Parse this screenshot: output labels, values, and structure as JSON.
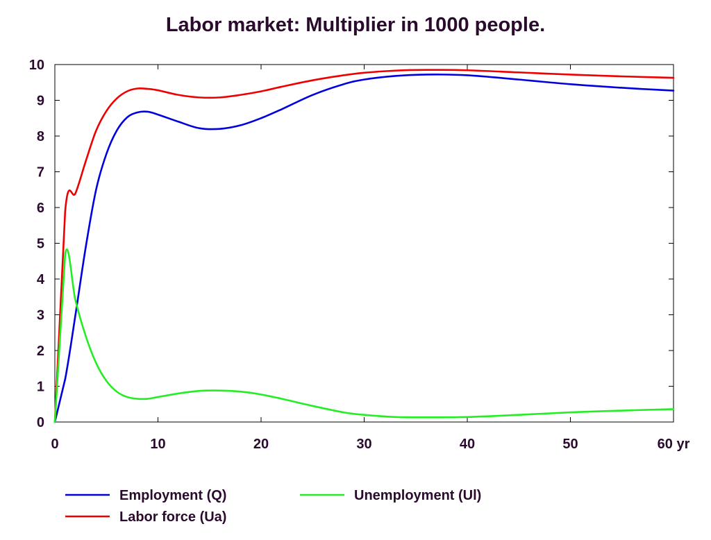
{
  "chart_data": {
    "type": "line",
    "title": "Labor market: Multiplier in 1000 people.",
    "xlabel": "",
    "ylabel": "",
    "x_unit_suffix": "yr",
    "xlim": [
      0,
      60
    ],
    "ylim": [
      0,
      10
    ],
    "x_ticks": [
      0,
      10,
      20,
      30,
      40,
      50,
      60
    ],
    "y_ticks": [
      0,
      1,
      2,
      3,
      4,
      5,
      6,
      7,
      8,
      9,
      10
    ],
    "grid": false,
    "legend_position": "bottom",
    "series": [
      {
        "name": "Employment (Q)",
        "color": "#0000dd",
        "x": [
          0,
          1,
          2,
          3,
          4,
          5,
          6,
          7,
          8,
          9,
          10,
          12,
          14,
          16,
          18,
          20,
          22,
          25,
          28,
          30,
          33,
          36,
          40,
          45,
          50,
          55,
          60
        ],
        "values": [
          0,
          1.2,
          3.0,
          4.9,
          6.5,
          7.5,
          8.15,
          8.52,
          8.66,
          8.68,
          8.6,
          8.4,
          8.22,
          8.2,
          8.3,
          8.5,
          8.75,
          9.15,
          9.45,
          9.58,
          9.68,
          9.72,
          9.7,
          9.58,
          9.45,
          9.35,
          9.27
        ]
      },
      {
        "name": "Labor force (Ua)",
        "color": "#ee0000",
        "x": [
          0,
          1,
          2,
          3,
          4,
          5,
          6,
          7,
          8,
          9,
          10,
          12,
          14,
          16,
          18,
          20,
          22,
          25,
          28,
          30,
          33,
          36,
          40,
          45,
          50,
          55,
          60
        ],
        "values": [
          0,
          5.9,
          6.4,
          7.3,
          8.15,
          8.7,
          9.05,
          9.25,
          9.33,
          9.32,
          9.28,
          9.15,
          9.08,
          9.08,
          9.15,
          9.25,
          9.38,
          9.56,
          9.7,
          9.77,
          9.83,
          9.85,
          9.84,
          9.78,
          9.72,
          9.67,
          9.63
        ]
      },
      {
        "name": "Unemployment (Ul)",
        "color": "#22ee22",
        "x": [
          0,
          1,
          2,
          3,
          4,
          5,
          6,
          7,
          8,
          9,
          10,
          12,
          14,
          16,
          18,
          20,
          22,
          25,
          28,
          30,
          33,
          36,
          40,
          45,
          50,
          55,
          60
        ],
        "values": [
          0,
          4.7,
          3.4,
          2.4,
          1.65,
          1.15,
          0.85,
          0.7,
          0.65,
          0.65,
          0.7,
          0.8,
          0.87,
          0.88,
          0.85,
          0.77,
          0.65,
          0.45,
          0.27,
          0.2,
          0.14,
          0.13,
          0.14,
          0.2,
          0.27,
          0.32,
          0.36
        ]
      }
    ]
  }
}
